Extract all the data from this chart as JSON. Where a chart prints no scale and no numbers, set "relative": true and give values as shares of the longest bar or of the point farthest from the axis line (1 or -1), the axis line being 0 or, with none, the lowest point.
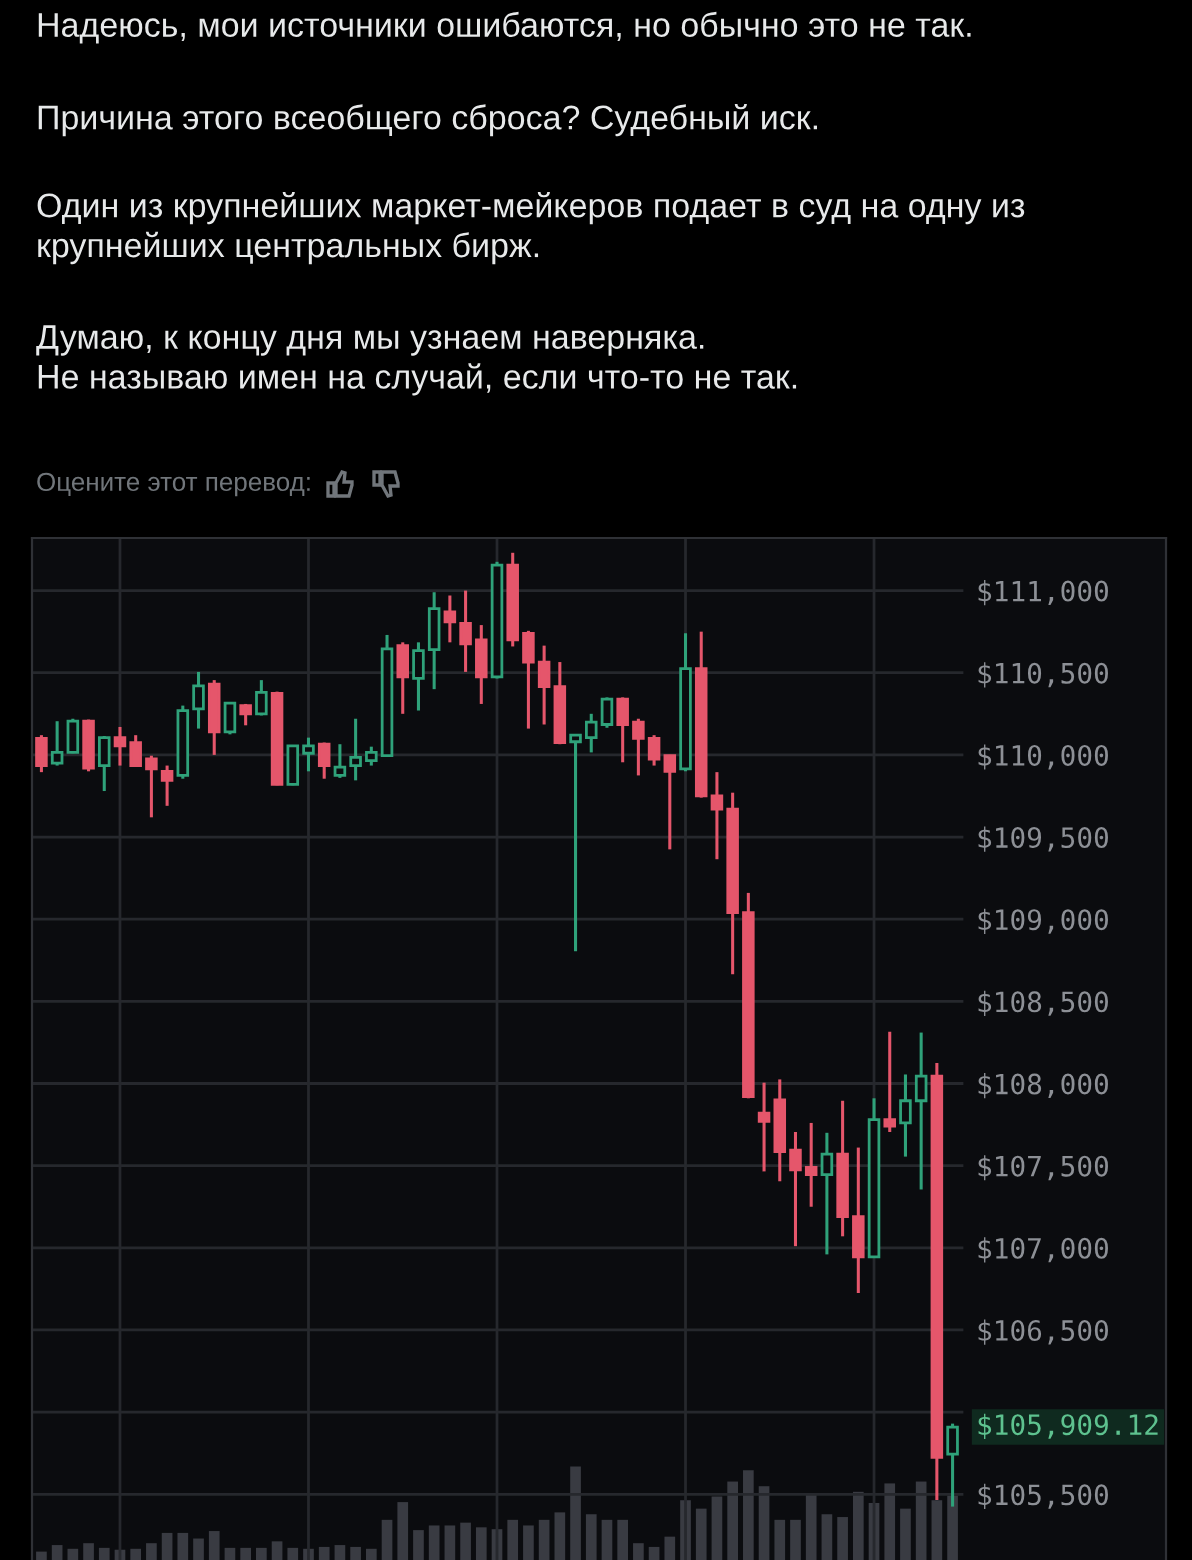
{
  "chart_data": [
    {
      "type": "candlestick",
      "title": "Надеюсь, мои источники ошибаются, но обычно это не так.",
      "annotations": [
        "Причина этого всеобщего сброса? Судебный иск.",
        "Один из крупнейших маркет-мейкеров подает в суд на одну из крупнейших центральных бирж.",
        "Думаю, к концу дня мы узнаем наверняка.\nНе называю имен на случай, если что-то не так.",
        "Оцените этот перевод:",
        "$105,909.12"
      ],
      "categories": [
        null,
        null,
        null,
        null,
        null,
        null,
        null,
        null,
        null,
        null,
        null,
        null,
        null,
        null,
        null,
        null,
        null,
        null,
        null,
        null,
        null,
        null,
        null,
        null,
        null,
        null,
        null,
        null,
        null,
        null,
        null,
        null,
        null,
        null,
        null,
        null,
        null,
        null,
        null,
        null,
        null,
        null,
        null,
        null,
        null,
        null,
        null,
        null,
        null,
        null,
        null,
        null,
        null,
        null,
        null,
        null,
        null,
        null,
        null
      ],
      "ylim": [
        105100,
        111320
      ],
      "yticks": [
        {
          "value": 105500,
          "label": "$105,500"
        },
        {
          "value": 106000,
          "label": null
        },
        {
          "value": 106500,
          "label": "$106,500"
        },
        {
          "value": 107000,
          "label": "$107,000"
        },
        {
          "value": 107500,
          "label": "$107,500"
        },
        {
          "value": 108000,
          "label": "$108,000"
        },
        {
          "value": 108500,
          "label": "$108,500"
        },
        {
          "value": 109000,
          "label": "$109,000"
        },
        {
          "value": 109500,
          "label": "$109,500"
        },
        {
          "value": 110000,
          "label": "$110,000"
        },
        {
          "value": 110500,
          "label": "$110,500"
        },
        {
          "value": 111000,
          "label": "$111,000"
        }
      ],
      "grid": true,
      "tick_labels": "y",
      "ohlc": [
        [
          110100,
          110120,
          109895,
          109935
        ],
        [
          109950,
          110205,
          109935,
          110015
        ],
        [
          110015,
          110220,
          110010,
          110205
        ],
        [
          110205,
          110215,
          109900,
          109920
        ],
        [
          109935,
          110115,
          109780,
          110105
        ],
        [
          110105,
          110170,
          109935,
          110055
        ],
        [
          110075,
          110120,
          109930,
          109935
        ],
        [
          109975,
          109995,
          109620,
          109915
        ],
        [
          109900,
          109935,
          109690,
          109845
        ],
        [
          109875,
          110300,
          109855,
          110270
        ],
        [
          110280,
          110505,
          110160,
          110420
        ],
        [
          110430,
          110455,
          110000,
          110140
        ],
        [
          110140,
          110320,
          110125,
          110315
        ],
        [
          110300,
          110310,
          110180,
          110250
        ],
        [
          110250,
          110455,
          110240,
          110380
        ],
        [
          110375,
          110385,
          109815,
          109820
        ],
        [
          109820,
          110060,
          109815,
          110055
        ],
        [
          110010,
          110105,
          109900,
          110055
        ],
        [
          110065,
          110075,
          109855,
          109935
        ],
        [
          109875,
          110065,
          109860,
          109925
        ],
        [
          109935,
          110220,
          109845,
          109985
        ],
        [
          109965,
          110050,
          109935,
          110015
        ],
        [
          109995,
          110730,
          109990,
          110645
        ],
        [
          110665,
          110685,
          110250,
          110475
        ],
        [
          110465,
          110685,
          110270,
          110635
        ],
        [
          110640,
          110990,
          110400,
          110890
        ],
        [
          110870,
          110970,
          110685,
          110810
        ],
        [
          110800,
          111000,
          110505,
          110675
        ],
        [
          110700,
          110790,
          110310,
          110475
        ],
        [
          110475,
          111175,
          110465,
          111155
        ],
        [
          111155,
          111230,
          110660,
          110700
        ],
        [
          110740,
          110755,
          110160,
          110565
        ],
        [
          110565,
          110665,
          110185,
          110415
        ],
        [
          110415,
          110565,
          110065,
          110075
        ],
        [
          110080,
          110125,
          108805,
          110120
        ],
        [
          110105,
          110250,
          110015,
          110200
        ],
        [
          110185,
          110350,
          110165,
          110340
        ],
        [
          110340,
          110350,
          109955,
          110185
        ],
        [
          110200,
          110220,
          109875,
          110100
        ],
        [
          110100,
          110120,
          109935,
          109975
        ],
        [
          109995,
          110000,
          109425,
          109900
        ],
        [
          109915,
          110740,
          109900,
          110525
        ],
        [
          110525,
          110750,
          109740,
          109750
        ],
        [
          109750,
          109895,
          109365,
          109670
        ],
        [
          109670,
          109770,
          108665,
          109040
        ],
        [
          109040,
          109160,
          107910,
          107920
        ],
        [
          107820,
          108005,
          107465,
          107770
        ],
        [
          107900,
          108025,
          107405,
          107585
        ],
        [
          107595,
          107705,
          107010,
          107475
        ],
        [
          107490,
          107760,
          107250,
          107445
        ],
        [
          107445,
          107700,
          106960,
          107570
        ],
        [
          107570,
          107895,
          107070,
          107190
        ],
        [
          107190,
          107610,
          106725,
          106945
        ],
        [
          106945,
          107910,
          106945,
          107780
        ],
        [
          107780,
          108315,
          107705,
          107740
        ],
        [
          107760,
          108055,
          107555,
          107895
        ],
        [
          107895,
          108310,
          107355,
          108045
        ],
        [
          108045,
          108125,
          105465,
          105725
        ],
        [
          105745,
          105930,
          105425,
          105909.12
        ]
      ],
      "colors": [
        "#e5566b",
        "#2fa27a",
        "#2fa27a",
        "#e5566b",
        "#2fa27a",
        "#e5566b",
        "#e5566b",
        "#e5566b",
        "#e5566b",
        "#2fa27a",
        "#2fa27a",
        "#e5566b",
        "#2fa27a",
        "#e5566b",
        "#2fa27a",
        "#e5566b",
        "#2fa27a",
        "#2fa27a",
        "#e5566b",
        "#2fa27a",
        "#2fa27a",
        "#2fa27a",
        "#2fa27a",
        "#e5566b",
        "#2fa27a",
        "#2fa27a",
        "#e5566b",
        "#e5566b",
        "#e5566b",
        "#2fa27a",
        "#e5566b",
        "#e5566b",
        "#e5566b",
        "#e5566b",
        "#2fa27a",
        "#2fa27a",
        "#2fa27a",
        "#e5566b",
        "#e5566b",
        "#e5566b",
        "#e5566b",
        "#2fa27a",
        "#e5566b",
        "#e5566b",
        "#e5566b",
        "#e5566b",
        "#e5566b",
        "#e5566b",
        "#e5566b",
        "#e5566b",
        "#2fa27a",
        "#e5566b",
        "#e5566b",
        "#2fa27a",
        "#e5566b",
        "#2fa27a",
        "#2fa27a",
        "#e5566b",
        "#2fa27a"
      ]
    },
    {
      "type": "bar",
      "relative": true,
      "tick_labels": false,
      "color": "#393b42",
      "categories": [
        null,
        null,
        null,
        null,
        null,
        null,
        null,
        null,
        null,
        null,
        null,
        null,
        null,
        null,
        null,
        null,
        null,
        null,
        null,
        null,
        null,
        null,
        null,
        null,
        null,
        null,
        null,
        null,
        null,
        null,
        null,
        null,
        null,
        null,
        null,
        null,
        null,
        null,
        null,
        null,
        null,
        null,
        null,
        null,
        null,
        null,
        null,
        null,
        null,
        null,
        null,
        null,
        null,
        null,
        null,
        null,
        null,
        null,
        null
      ],
      "values": [
        0.09,
        0.16,
        0.12,
        0.18,
        0.13,
        0.11,
        0.12,
        0.18,
        0.29,
        0.29,
        0.23,
        0.31,
        0.13,
        0.13,
        0.13,
        0.2,
        0.13,
        0.12,
        0.14,
        0.16,
        0.14,
        0.12,
        0.43,
        0.62,
        0.32,
        0.37,
        0.37,
        0.4,
        0.35,
        0.33,
        0.43,
        0.37,
        0.43,
        0.51,
        1,
        0.49,
        0.43,
        0.43,
        0.18,
        0.14,
        0.25,
        0.64,
        0.55,
        0.68,
        0.84,
        0.96,
        0.79,
        0.43,
        0.43,
        0.7,
        0.49,
        0.46,
        0.73,
        0.61,
        0.82,
        0.55,
        0.84,
        0.64,
        0.69
      ]
    }
  ]
}
